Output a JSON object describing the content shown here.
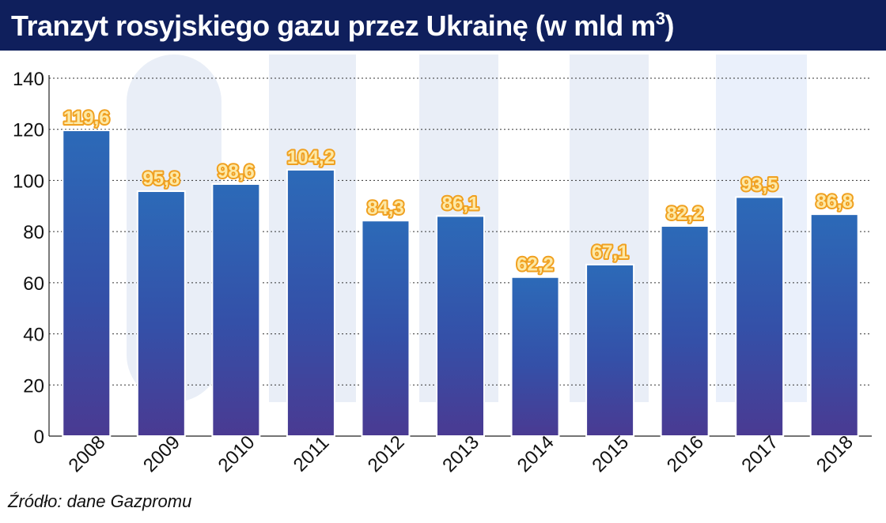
{
  "header": {
    "title_main": "Tranzyt rosyjskiego gazu przez Ukrainę (w mld m",
    "title_sup": "3",
    "title_end": ")"
  },
  "footer": {
    "source": "Źródło: dane Gazpromu"
  },
  "colors": {
    "title_bg": "#0f1f5c",
    "bar_top": "#2c6ab8",
    "bar_bottom": "#4a3a92",
    "label_fill": "#fde9a6",
    "label_stroke": "#f0a020",
    "watermark": "#e9eef7"
  },
  "chart_data": {
    "type": "bar",
    "categories": [
      "2008",
      "2009",
      "2010",
      "2011",
      "2012",
      "2013",
      "2014",
      "2015",
      "2016",
      "2017",
      "2018"
    ],
    "values": [
      119.6,
      95.8,
      98.6,
      104.2,
      84.3,
      86.1,
      62.2,
      67.1,
      82.2,
      93.5,
      86.8
    ],
    "data_labels": [
      "119,6",
      "95,8",
      "98,6",
      "104,2",
      "84,3",
      "86,1",
      "62,2",
      "67,1",
      "82,2",
      "93,5",
      "86,8"
    ],
    "yticks": [
      0,
      20,
      40,
      60,
      80,
      100,
      120,
      140
    ],
    "ylim": [
      0,
      140
    ],
    "grid": true,
    "xlabel": "",
    "ylabel": ""
  }
}
